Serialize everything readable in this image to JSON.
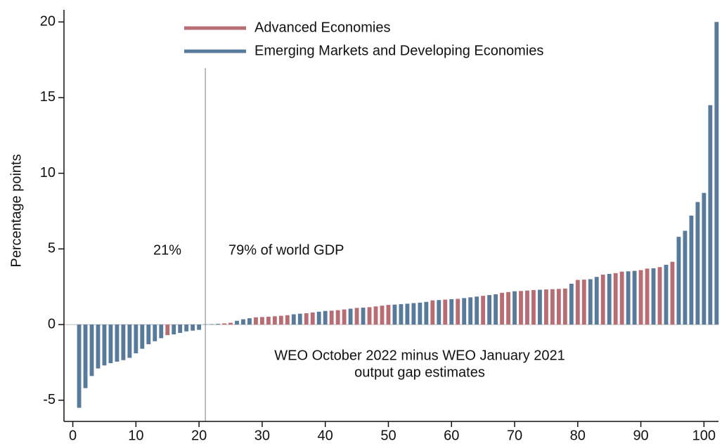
{
  "chart_data": {
    "type": "bar",
    "ylabel": "Percentage points",
    "annotations": [
      "21%",
      "79% of world GDP",
      "WEO October 2022 minus WEO January 2021",
      "output gap estimates"
    ],
    "vline": 21,
    "hline": 0,
    "xlim": [
      -1.4,
      102.3
    ],
    "xticks": [
      0,
      10,
      20,
      30,
      40,
      50,
      60,
      70,
      80,
      90,
      100
    ],
    "ylim": [
      -6.4,
      20.8
    ],
    "yticks": [
      -5,
      0,
      5,
      10,
      15,
      20
    ],
    "series": [
      {
        "name": "Advanced Economies",
        "color": "#b86d74",
        "x": [
          15,
          24,
          25,
          29,
          30,
          31,
          32,
          33,
          34,
          37,
          38,
          41,
          42,
          43,
          45,
          47,
          48,
          49,
          50,
          57,
          59,
          61,
          65,
          68,
          69,
          71,
          72,
          73,
          75,
          76,
          77,
          78,
          80,
          81,
          84,
          86,
          87,
          90,
          91,
          93,
          95
        ],
        "values": [
          -0.7,
          0.08,
          0.12,
          0.48,
          0.5,
          0.52,
          0.55,
          0.58,
          0.62,
          0.75,
          0.8,
          0.92,
          0.95,
          1.0,
          1.1,
          1.15,
          1.2,
          1.25,
          1.3,
          1.6,
          1.65,
          1.7,
          1.9,
          2.1,
          2.15,
          2.22,
          2.25,
          2.28,
          2.32,
          2.34,
          2.36,
          2.38,
          2.95,
          2.97,
          3.3,
          3.4,
          3.5,
          3.6,
          3.7,
          3.8,
          4.15
        ]
      },
      {
        "name": "Emerging Markets and Developing Economies",
        "color": "#587a9b",
        "x": [
          1,
          2,
          3,
          4,
          5,
          6,
          7,
          8,
          9,
          10,
          11,
          12,
          13,
          14,
          16,
          17,
          18,
          19,
          20,
          21,
          22,
          23,
          26,
          27,
          28,
          35,
          36,
          39,
          40,
          44,
          46,
          51,
          52,
          53,
          54,
          55,
          56,
          58,
          60,
          62,
          63,
          64,
          66,
          67,
          70,
          74,
          79,
          82,
          83,
          85,
          88,
          89,
          92,
          94,
          96,
          97,
          98,
          99,
          100,
          101,
          102
        ],
        "values": [
          -5.5,
          -4.2,
          -3.4,
          -2.9,
          -2.7,
          -2.55,
          -2.45,
          -2.35,
          -2.2,
          -1.9,
          -1.6,
          -1.3,
          -1.1,
          -0.9,
          -0.65,
          -0.55,
          -0.45,
          -0.4,
          -0.35,
          0.02,
          0.03,
          0.05,
          0.25,
          0.35,
          0.42,
          0.68,
          0.72,
          0.85,
          0.9,
          1.05,
          1.12,
          1.32,
          1.35,
          1.38,
          1.42,
          1.45,
          1.5,
          1.62,
          1.68,
          1.75,
          1.8,
          1.85,
          1.95,
          2.0,
          2.2,
          2.3,
          2.7,
          3.0,
          3.15,
          3.35,
          3.52,
          3.55,
          3.72,
          3.95,
          5.8,
          6.2,
          7.2,
          8.1,
          8.7,
          14.5,
          20.0
        ]
      }
    ]
  }
}
